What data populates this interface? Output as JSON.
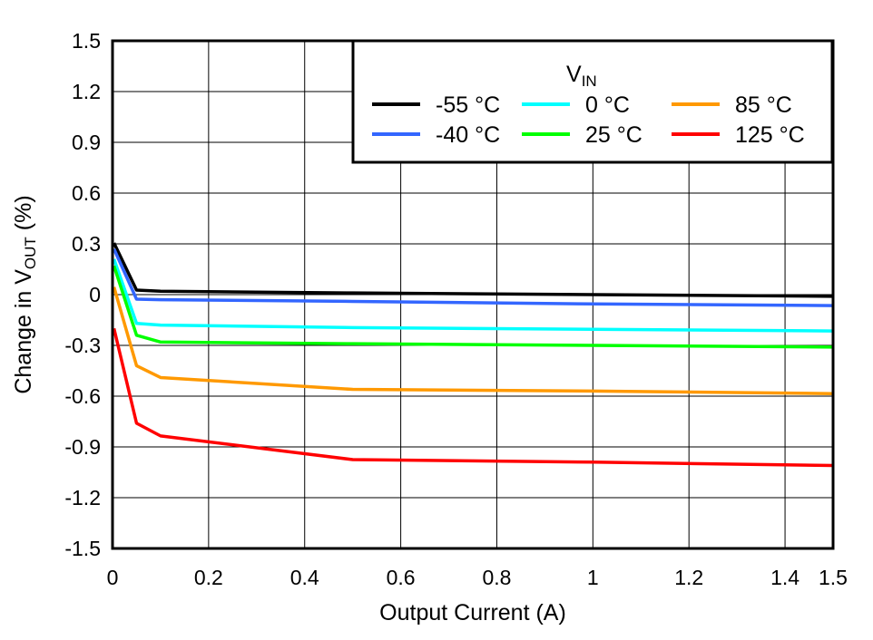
{
  "chart_data": {
    "type": "line",
    "xlabel": "Output Current (A)",
    "ylabel": "Change in V",
    "ylabel_sub": "OUT",
    "ylabel_suffix": " (%)",
    "xlim": [
      0,
      1.5
    ],
    "ylim": [
      -1.5,
      1.5
    ],
    "xticks": [
      0,
      0.2,
      0.4,
      0.6,
      0.8,
      1,
      1.2,
      1.4,
      1.5
    ],
    "xtick_labels": [
      "0",
      "0.2",
      "0.4",
      "0.6",
      "0.8",
      "1",
      "1.2",
      "1.4",
      "1.5"
    ],
    "yticks": [
      1.5,
      1.2,
      0.9,
      0.6,
      0.3,
      0,
      -0.3,
      -0.6,
      -0.9,
      -1.2,
      -1.5
    ],
    "ytick_labels": [
      "1.5",
      "1.2",
      "0.9",
      "0.6",
      "0.3",
      "0",
      "-0.3",
      "-0.6",
      "-0.9",
      "-1.2",
      "-1.5"
    ],
    "grid": true,
    "legend": {
      "title": "V",
      "title_sub": "IN",
      "placement": "top-right",
      "columns": 3
    },
    "series": [
      {
        "name": "-55 °C",
        "color": "#000000",
        "x": [
          0.003,
          0.05,
          0.1,
          0.5,
          1.0,
          1.5
        ],
        "y": [
          0.305,
          0.027,
          0.02,
          0.01,
          0.0,
          -0.01
        ]
      },
      {
        "name": "-40 °C",
        "color": "#3366ff",
        "x": [
          0.003,
          0.05,
          0.1,
          0.5,
          1.0,
          1.5
        ],
        "y": [
          0.27,
          -0.027,
          -0.03,
          -0.04,
          -0.055,
          -0.065
        ]
      },
      {
        "name": "0 °C",
        "color": "#00ffff",
        "x": [
          0.003,
          0.05,
          0.1,
          0.5,
          1.0,
          1.5
        ],
        "y": [
          0.21,
          -0.17,
          -0.18,
          -0.195,
          -0.205,
          -0.215
        ]
      },
      {
        "name": "25 °C",
        "color": "#00ff00",
        "x": [
          0.003,
          0.05,
          0.1,
          0.5,
          1.0,
          1.5
        ],
        "y": [
          0.17,
          -0.24,
          -0.28,
          -0.29,
          -0.3,
          -0.31
        ]
      },
      {
        "name": "85 °C",
        "color": "#ff9900",
        "x": [
          0.003,
          0.05,
          0.1,
          0.5,
          1.0,
          1.5
        ],
        "y": [
          0.045,
          -0.42,
          -0.49,
          -0.56,
          -0.57,
          -0.585
        ]
      },
      {
        "name": "125 °C",
        "color": "#ff0000",
        "x": [
          0.003,
          0.05,
          0.1,
          0.5,
          1.0,
          1.5
        ],
        "y": [
          -0.2,
          -0.76,
          -0.835,
          -0.975,
          -0.99,
          -1.01
        ]
      }
    ]
  }
}
